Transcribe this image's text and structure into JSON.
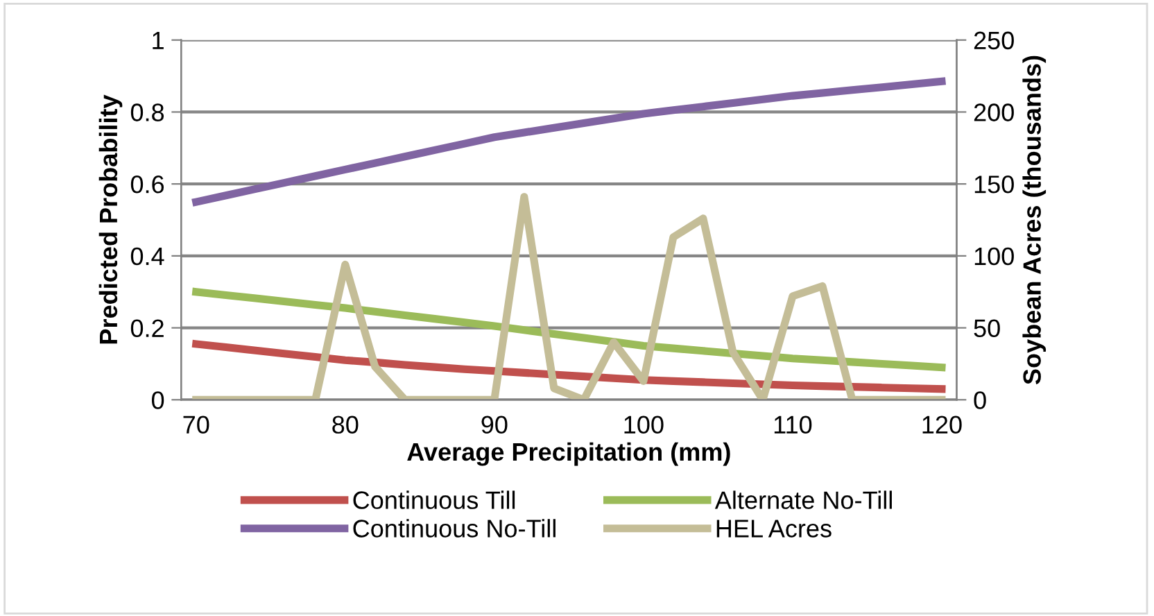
{
  "chart_data": {
    "type": "line",
    "xlabel": "Average Precipitation (mm)",
    "ylabel": "Predicted Probability",
    "y2label": "Soybean Acres (thousands)",
    "categories": [
      "70",
      null,
      null,
      null,
      null,
      "80",
      null,
      null,
      null,
      null,
      "90",
      null,
      null,
      null,
      null,
      "100",
      null,
      null,
      null,
      null,
      "110",
      null,
      null,
      null,
      null,
      "120"
    ],
    "ylim": [
      0,
      1
    ],
    "yticks": [
      0,
      0.2,
      0.4,
      0.6,
      0.8,
      1
    ],
    "y2lim": [
      0,
      250
    ],
    "y2ticks": [
      0,
      50,
      100,
      150,
      200,
      250
    ],
    "grid": "y",
    "legend": "bottom",
    "marker": "none",
    "series": [
      {
        "name": "Continuous Till",
        "color": "#c0504d",
        "values": [
          0.155,
          0.146,
          0.137,
          0.128,
          0.119,
          0.11,
          0.104,
          0.097,
          0.091,
          0.085,
          0.08,
          0.075,
          0.07,
          0.065,
          0.06,
          0.055,
          0.052,
          0.049,
          0.046,
          0.043,
          0.04,
          0.038,
          0.036,
          0.034,
          0.032,
          0.03
        ]
      },
      {
        "name": "Alternate No-Till",
        "color": "#9bbb59",
        "values": [
          0.3,
          0.291,
          0.282,
          0.273,
          0.264,
          0.255,
          0.245,
          0.235,
          0.225,
          0.215,
          0.205,
          0.194,
          0.183,
          0.172,
          0.161,
          0.15,
          0.143,
          0.136,
          0.129,
          0.122,
          0.115,
          0.11,
          0.105,
          0.1,
          0.095,
          0.09
        ]
      },
      {
        "name": "Continuous No-Till",
        "color": "#8064a2",
        "values": [
          0.55,
          0.568,
          0.586,
          0.604,
          0.622,
          0.64,
          0.658,
          0.676,
          0.694,
          0.712,
          0.73,
          0.743,
          0.756,
          0.769,
          0.782,
          0.795,
          0.805,
          0.815,
          0.825,
          0.835,
          0.845,
          0.853,
          0.861,
          0.869,
          0.877,
          0.885
        ]
      },
      {
        "name": "HEL Acres",
        "color": "#c4bd97",
        "axis": "y2",
        "values": [
          0,
          0,
          0,
          0,
          0,
          94,
          23,
          0,
          0,
          0,
          0,
          141,
          8,
          0,
          40,
          13,
          113,
          126,
          33,
          0,
          72,
          79,
          0,
          0,
          0,
          0
        ]
      }
    ]
  }
}
